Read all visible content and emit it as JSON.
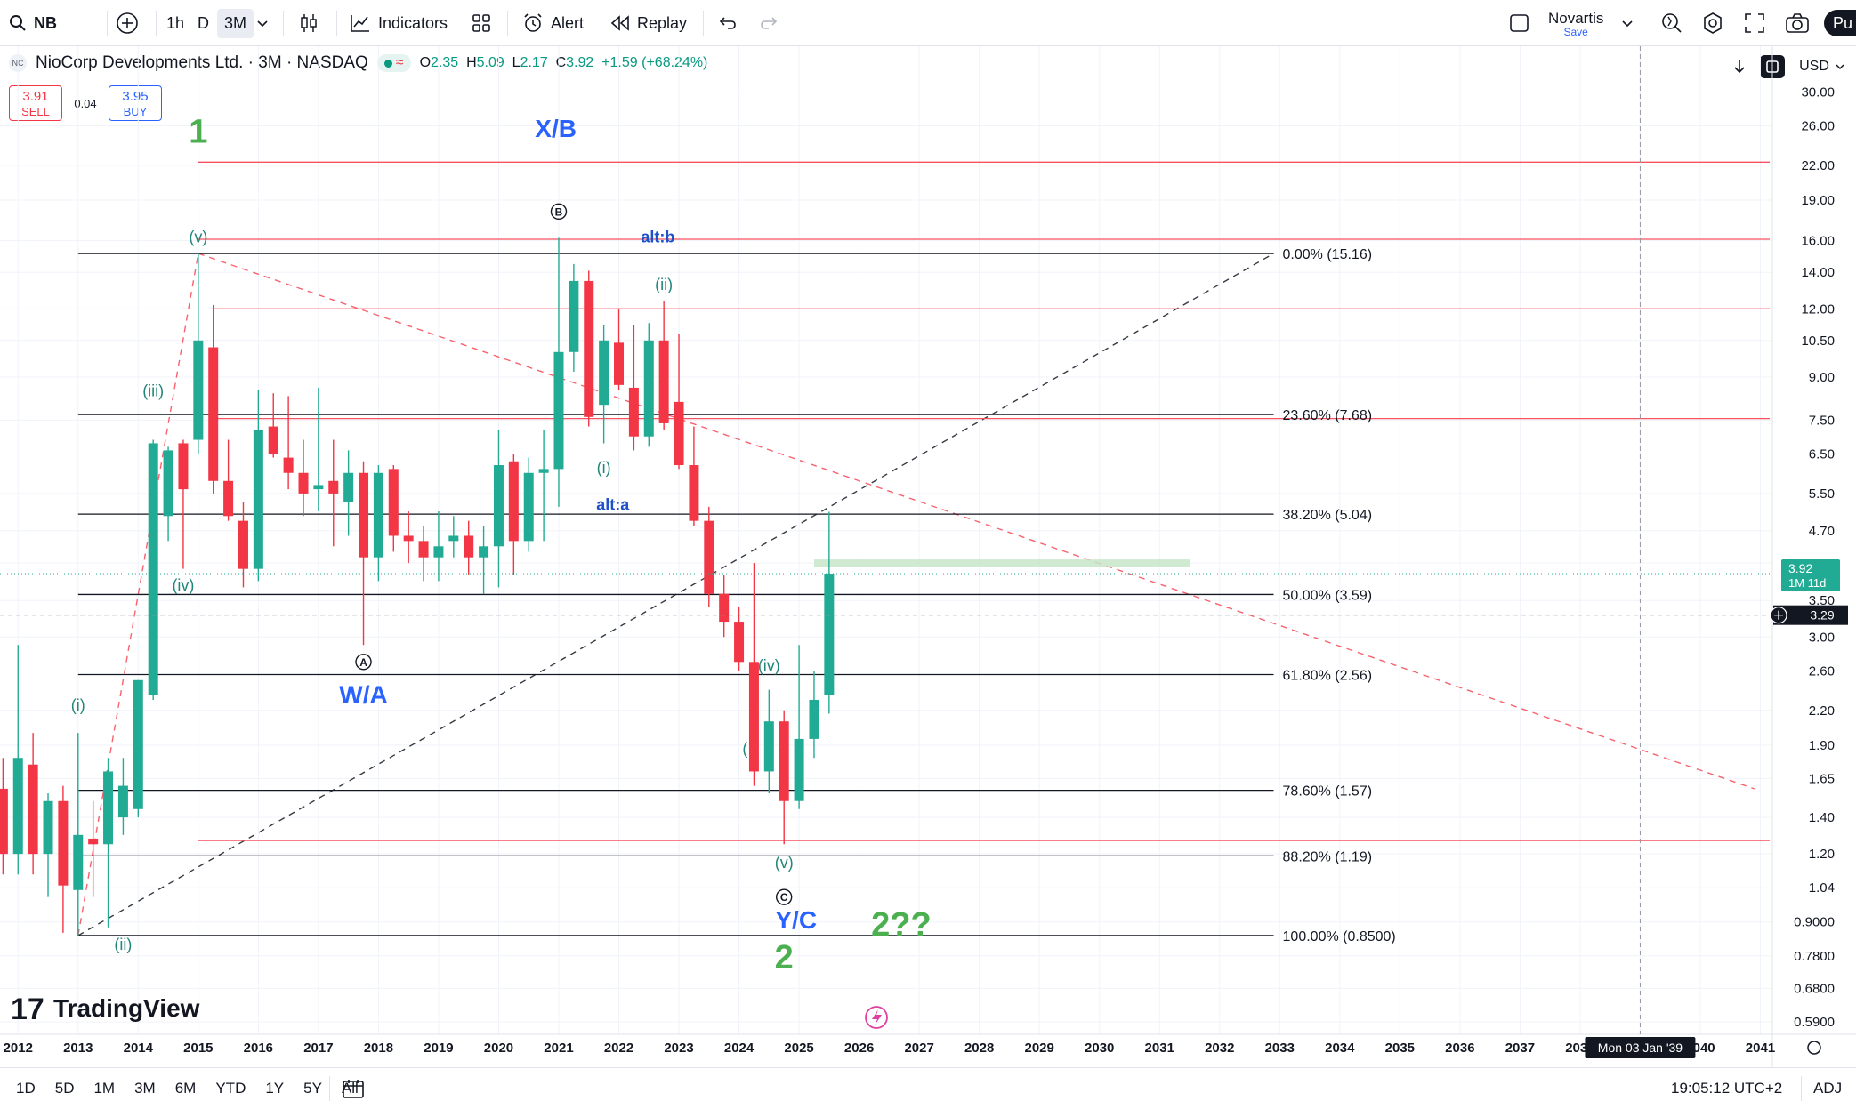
{
  "toolbar": {
    "symbol": "NB",
    "timeframes": [
      "1h",
      "D",
      "3M"
    ],
    "indicators_label": "Indicators",
    "alert_label": "Alert",
    "replay_label": "Replay",
    "layout_name": "Novartis",
    "layout_status": "Save",
    "publish_label": "Pu"
  },
  "legend": {
    "title": "NioCorp Developments Ltd. · 3M · NASDAQ",
    "logo_text": "NC",
    "o_label": "O",
    "o_value": "2.35",
    "h_label": "H",
    "h_value": "5.09",
    "l_label": "L",
    "l_value": "2.17",
    "c_label": "C",
    "c_value": "3.92",
    "change": "+1.59 (+68.24%)"
  },
  "trade": {
    "sell_price": "3.91",
    "sell_label": "SELL",
    "spread": "0.04",
    "buy_price": "3.95",
    "buy_label": "BUY"
  },
  "price_scale": {
    "currency": "USD"
  },
  "watermark": "TradingView",
  "bottom": {
    "ranges": [
      "1D",
      "5D",
      "1M",
      "3M",
      "6M",
      "YTD",
      "1Y",
      "5Y",
      "All"
    ],
    "time": "19:05:12 UTC+2",
    "adj": "ADJ"
  },
  "colors": {
    "up": "#22ab94",
    "down": "#f23645",
    "fib_line": "#131722",
    "red_level": "#f7525f",
    "wave_green": "#4caf50",
    "wave_blue": "#2962ff",
    "wave_teal": "#22867a"
  },
  "chart_data": {
    "type": "candlestick",
    "symbol": "NB",
    "interval": "3M",
    "scale": "log",
    "y_ticks": [
      30.0,
      26.0,
      22.0,
      19.0,
      16.0,
      14.0,
      12.0,
      10.5,
      9.0,
      7.5,
      6.5,
      5.5,
      4.7,
      4.1,
      3.5,
      3.0,
      2.6,
      2.2,
      1.9,
      1.65,
      1.4,
      1.2,
      1.04,
      0.9,
      0.78,
      0.68,
      0.59
    ],
    "y_tick_labels": [
      "30.00",
      "26.00",
      "22.00",
      "19.00",
      "16.00",
      "14.00",
      "12.00",
      "10.50",
      "9.00",
      "7.50",
      "6.50",
      "5.50",
      "4.70",
      "4.10",
      "3.50",
      "3.00",
      "2.60",
      "2.20",
      "1.90",
      "1.65",
      "1.40",
      "1.20",
      "1.04",
      "0.9000",
      "0.7800",
      "0.6800",
      "0.5900"
    ],
    "x_ticks": [
      "2012",
      "2013",
      "2014",
      "2015",
      "2016",
      "2017",
      "2018",
      "2019",
      "2020",
      "2021",
      "2022",
      "2023",
      "2024",
      "2025",
      "2026",
      "2027",
      "2028",
      "2029",
      "2030",
      "2031",
      "2032",
      "2033",
      "2034",
      "2035",
      "2036",
      "2037",
      "2038",
      "2039",
      "2040",
      "2041"
    ],
    "x_range": [
      2011.7,
      2041.2
    ],
    "ylim": [
      0.56,
      33
    ],
    "last_price": "3.92",
    "last_price_countdown": "1M 11d",
    "crosshair_price": "3.29",
    "crosshair_date": "Mon 03 Jan '39",
    "candles": [
      {
        "t": 2011.75,
        "o": 1.58,
        "h": 1.8,
        "l": 1.1,
        "c": 1.2
      },
      {
        "t": 2012.0,
        "o": 1.2,
        "h": 2.9,
        "l": 1.1,
        "c": 1.8
      },
      {
        "t": 2012.25,
        "o": 1.75,
        "h": 2.0,
        "l": 1.1,
        "c": 1.2
      },
      {
        "t": 2012.5,
        "o": 1.2,
        "h": 1.55,
        "l": 1.0,
        "c": 1.5
      },
      {
        "t": 2012.75,
        "o": 1.5,
        "h": 1.6,
        "l": 0.86,
        "c": 1.05
      },
      {
        "t": 2013.0,
        "o": 1.03,
        "h": 2.0,
        "l": 0.85,
        "c": 1.3
      },
      {
        "t": 2013.25,
        "o": 1.28,
        "h": 1.5,
        "l": 1.0,
        "c": 1.25
      },
      {
        "t": 2013.5,
        "o": 1.25,
        "h": 1.8,
        "l": 0.88,
        "c": 1.7
      },
      {
        "t": 2013.75,
        "o": 1.4,
        "h": 1.8,
        "l": 1.3,
        "c": 1.6
      },
      {
        "t": 2014.0,
        "o": 1.45,
        "h": 2.5,
        "l": 1.4,
        "c": 2.5
      },
      {
        "t": 2014.25,
        "o": 2.35,
        "h": 6.9,
        "l": 2.3,
        "c": 6.8
      },
      {
        "t": 2014.5,
        "o": 5.0,
        "h": 6.7,
        "l": 4.5,
        "c": 6.6
      },
      {
        "t": 2014.75,
        "o": 6.8,
        "h": 6.9,
        "l": 4.0,
        "c": 5.6
      },
      {
        "t": 2015.0,
        "o": 6.9,
        "h": 15.2,
        "l": 6.5,
        "c": 10.5
      },
      {
        "t": 2015.25,
        "o": 10.2,
        "h": 12.2,
        "l": 5.5,
        "c": 5.8
      },
      {
        "t": 2015.5,
        "o": 5.8,
        "h": 6.9,
        "l": 4.9,
        "c": 5.0
      },
      {
        "t": 2015.75,
        "o": 4.9,
        "h": 5.3,
        "l": 3.7,
        "c": 4.0
      },
      {
        "t": 2016.0,
        "o": 4.0,
        "h": 8.5,
        "l": 3.8,
        "c": 7.2
      },
      {
        "t": 2016.25,
        "o": 7.3,
        "h": 8.4,
        "l": 6.4,
        "c": 6.5
      },
      {
        "t": 2016.5,
        "o": 6.4,
        "h": 8.3,
        "l": 5.6,
        "c": 6.0
      },
      {
        "t": 2016.75,
        "o": 6.0,
        "h": 6.9,
        "l": 5.0,
        "c": 5.5
      },
      {
        "t": 2017.0,
        "o": 5.6,
        "h": 8.6,
        "l": 5.1,
        "c": 5.7
      },
      {
        "t": 2017.25,
        "o": 5.8,
        "h": 6.9,
        "l": 4.4,
        "c": 5.5
      },
      {
        "t": 2017.5,
        "o": 5.3,
        "h": 6.6,
        "l": 4.6,
        "c": 6.0
      },
      {
        "t": 2017.75,
        "o": 6.0,
        "h": 6.3,
        "l": 2.9,
        "c": 4.2
      },
      {
        "t": 2018.0,
        "o": 4.2,
        "h": 6.2,
        "l": 3.8,
        "c": 6.0
      },
      {
        "t": 2018.25,
        "o": 6.1,
        "h": 6.2,
        "l": 4.3,
        "c": 4.6
      },
      {
        "t": 2018.5,
        "o": 4.6,
        "h": 5.1,
        "l": 4.1,
        "c": 4.5
      },
      {
        "t": 2018.75,
        "o": 4.5,
        "h": 4.8,
        "l": 3.8,
        "c": 4.2
      },
      {
        "t": 2019.0,
        "o": 4.2,
        "h": 5.1,
        "l": 3.8,
        "c": 4.4
      },
      {
        "t": 2019.25,
        "o": 4.5,
        "h": 5.0,
        "l": 4.2,
        "c": 4.6
      },
      {
        "t": 2019.5,
        "o": 4.6,
        "h": 4.9,
        "l": 3.9,
        "c": 4.2
      },
      {
        "t": 2019.75,
        "o": 4.2,
        "h": 4.8,
        "l": 3.6,
        "c": 4.4
      },
      {
        "t": 2020.0,
        "o": 4.4,
        "h": 7.2,
        "l": 3.7,
        "c": 6.2
      },
      {
        "t": 2020.25,
        "o": 6.3,
        "h": 6.5,
        "l": 3.9,
        "c": 4.5
      },
      {
        "t": 2020.5,
        "o": 4.5,
        "h": 6.4,
        "l": 4.3,
        "c": 6.0
      },
      {
        "t": 2020.75,
        "o": 6.0,
        "h": 7.2,
        "l": 4.5,
        "c": 6.1
      },
      {
        "t": 2021.0,
        "o": 6.1,
        "h": 16.2,
        "l": 5.2,
        "c": 10.0
      },
      {
        "t": 2021.25,
        "o": 10.0,
        "h": 14.5,
        "l": 9.2,
        "c": 13.5
      },
      {
        "t": 2021.5,
        "o": 13.5,
        "h": 14.1,
        "l": 7.3,
        "c": 7.6
      },
      {
        "t": 2021.75,
        "o": 8.0,
        "h": 11.2,
        "l": 6.8,
        "c": 10.5
      },
      {
        "t": 2022.0,
        "o": 10.4,
        "h": 12.0,
        "l": 8.5,
        "c": 8.7
      },
      {
        "t": 2022.25,
        "o": 8.6,
        "h": 11.2,
        "l": 6.6,
        "c": 7.0
      },
      {
        "t": 2022.5,
        "o": 7.0,
        "h": 11.3,
        "l": 6.7,
        "c": 10.5
      },
      {
        "t": 2022.75,
        "o": 10.5,
        "h": 12.4,
        "l": 7.2,
        "c": 7.4
      },
      {
        "t": 2023.0,
        "o": 8.1,
        "h": 10.8,
        "l": 6.1,
        "c": 6.2
      },
      {
        "t": 2023.25,
        "o": 6.2,
        "h": 7.3,
        "l": 4.8,
        "c": 4.9
      },
      {
        "t": 2023.5,
        "o": 4.9,
        "h": 5.2,
        "l": 3.4,
        "c": 3.6
      },
      {
        "t": 2023.75,
        "o": 3.6,
        "h": 3.9,
        "l": 3.0,
        "c": 3.2
      },
      {
        "t": 2024.0,
        "o": 3.2,
        "h": 3.4,
        "l": 2.6,
        "c": 2.7
      },
      {
        "t": 2024.25,
        "o": 2.7,
        "h": 4.1,
        "l": 1.6,
        "c": 1.7
      },
      {
        "t": 2024.5,
        "o": 1.7,
        "h": 2.4,
        "l": 1.55,
        "c": 2.1
      },
      {
        "t": 2024.75,
        "o": 2.1,
        "h": 2.2,
        "l": 1.25,
        "c": 1.5
      },
      {
        "t": 2025.0,
        "o": 1.5,
        "h": 2.9,
        "l": 1.45,
        "c": 1.95
      },
      {
        "t": 2025.25,
        "o": 1.95,
        "h": 2.6,
        "l": 1.8,
        "c": 2.3
      },
      {
        "t": 2025.5,
        "o": 2.35,
        "h": 5.09,
        "l": 2.17,
        "c": 3.92
      }
    ],
    "fib_levels": [
      {
        "label": "0.00% (15.16)",
        "price": 15.16
      },
      {
        "label": "23.60% (7.68)",
        "price": 7.68
      },
      {
        "label": "38.20% (5.04)",
        "price": 5.04
      },
      {
        "label": "50.00% (3.59)",
        "price": 3.59
      },
      {
        "label": "61.80% (2.56)",
        "price": 2.56
      },
      {
        "label": "78.60% (1.57)",
        "price": 1.57
      },
      {
        "label": "88.20% (1.19)",
        "price": 1.19
      },
      {
        "label": "100.00% (0.8500)",
        "price": 0.85
      }
    ],
    "fib_range": [
      2013.0,
      2032.9
    ],
    "red_levels": [
      {
        "price": 22.3,
        "from": 2015.0
      },
      {
        "price": 16.1,
        "from": 2015.0
      },
      {
        "price": 12.0,
        "from": 2015.25
      },
      {
        "price": 7.55,
        "from": 2015.25
      },
      {
        "price": 1.27,
        "from": 2015.0
      }
    ],
    "highlight_zone": {
      "price": 4.1,
      "from": 2025.25,
      "to": 2031.5
    },
    "trendlines": [
      {
        "style": "black-dash",
        "from": [
          2013.0,
          0.85
        ],
        "to": [
          2032.9,
          15.16
        ]
      },
      {
        "style": "red-dash",
        "from": [
          2015.0,
          15.16
        ],
        "to": [
          2040.9,
          1.58
        ]
      },
      {
        "style": "red-dash",
        "from": [
          2013.0,
          0.85
        ],
        "to": [
          2015.0,
          15.16
        ]
      }
    ],
    "annotations": [
      {
        "text": "1",
        "t": 2015.0,
        "p": 24.2,
        "kind": "green-big"
      },
      {
        "text": "X/B",
        "t": 2020.95,
        "p": 24.8,
        "kind": "blue-big"
      },
      {
        "text": "(v)",
        "t": 2015.0,
        "p": 15.9,
        "kind": "teal"
      },
      {
        "text": "B",
        "t": 2021.0,
        "p": 18.1,
        "kind": "circle"
      },
      {
        "text": "alt:b",
        "t": 2022.65,
        "p": 15.9,
        "kind": "blue-small"
      },
      {
        "text": "(ii)",
        "t": 2022.75,
        "p": 13.0,
        "kind": "teal"
      },
      {
        "text": "(iii)",
        "t": 2014.25,
        "p": 8.3,
        "kind": "teal"
      },
      {
        "text": "(i)",
        "t": 2021.75,
        "p": 6.0,
        "kind": "teal"
      },
      {
        "text": "alt:a",
        "t": 2021.9,
        "p": 5.13,
        "kind": "blue-small"
      },
      {
        "text": "(iv)",
        "t": 2014.75,
        "p": 3.65,
        "kind": "teal"
      },
      {
        "text": "A",
        "t": 2017.75,
        "p": 2.7,
        "kind": "circle"
      },
      {
        "text": "W/A",
        "t": 2017.75,
        "p": 2.27,
        "kind": "blue-big"
      },
      {
        "text": "(i)",
        "t": 2013.0,
        "p": 2.2,
        "kind": "teal"
      },
      {
        "text": "(iv)",
        "t": 2024.5,
        "p": 2.6,
        "kind": "teal"
      },
      {
        "text": "(",
        "t": 2024.1,
        "p": 1.83,
        "kind": "teal"
      },
      {
        "text": "(v)",
        "t": 2024.75,
        "p": 1.13,
        "kind": "teal"
      },
      {
        "text": "C",
        "t": 2024.75,
        "p": 1.0,
        "kind": "circle"
      },
      {
        "text": "Y/C",
        "t": 2024.95,
        "p": 0.875,
        "kind": "blue-big"
      },
      {
        "text": "2??",
        "t": 2026.7,
        "p": 0.85,
        "kind": "green-big"
      },
      {
        "text": "2",
        "t": 2024.75,
        "p": 0.74,
        "kind": "green-big"
      },
      {
        "text": "(ii)",
        "t": 2013.75,
        "p": 0.8,
        "kind": "teal"
      }
    ]
  }
}
